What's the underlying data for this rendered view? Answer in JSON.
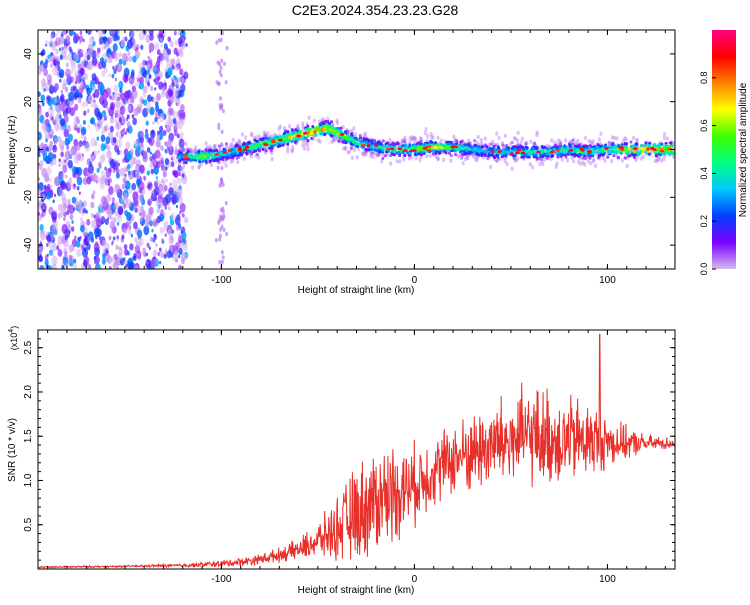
{
  "title": "C2E3.2024.354.23.23.G28",
  "chart_data": [
    {
      "type": "heatmap",
      "xlabel": "Height of straight line (km)",
      "ylabel": "Frequency (Hz)",
      "xlim": [
        -195,
        135
      ],
      "ylim": [
        -50,
        50
      ],
      "x_ticks": [
        -100,
        0,
        100
      ],
      "y_ticks": [
        -40,
        -20,
        0,
        20,
        40
      ],
      "colorbar": {
        "label": "Normalized spectral amplitude",
        "range": [
          0.0,
          1.0
        ],
        "ticks": [
          0.0,
          0.2,
          0.4,
          0.6,
          0.8
        ],
        "colormap": [
          "#d8b8f0",
          "#7a00ff",
          "#0040ff",
          "#00c8ff",
          "#00ff80",
          "#40ff00",
          "#ffff00",
          "#ff8000",
          "#ff0000",
          "#ff0080"
        ]
      },
      "noise_region_x": [
        -195,
        -122
      ],
      "ridge": {
        "x": [
          -122,
          -110,
          -100,
          -90,
          -80,
          -70,
          -60,
          -50,
          -45,
          -40,
          -35,
          -30,
          -20,
          -10,
          0,
          10,
          20,
          30,
          40,
          50,
          60,
          70,
          80,
          90,
          100,
          110,
          120,
          135
        ],
        "freq": [
          -3,
          -3,
          -2,
          0,
          2,
          4,
          6,
          8,
          9,
          7,
          5,
          3,
          1,
          0,
          0,
          1,
          1,
          0,
          -1,
          -1,
          -1,
          -1,
          0,
          -1,
          0,
          0,
          0,
          0
        ],
        "amplitude": [
          0.35,
          0.7,
          0.45,
          0.5,
          0.6,
          0.65,
          0.8,
          0.85,
          0.8,
          0.75,
          0.6,
          0.5,
          0.45,
          0.55,
          0.6,
          0.7,
          0.55,
          0.45,
          0.4,
          0.45,
          0.5,
          0.45,
          0.5,
          0.5,
          0.55,
          0.7,
          0.85,
          0.8
        ]
      }
    },
    {
      "type": "line",
      "xlabel": "Height of straight line (km)",
      "ylabel": "SNR (10 * v/v)",
      "y_multiplier": "(x10",
      "y_multiplier_exp": "4",
      "y_multiplier_close": ")",
      "xlim": [
        -195,
        135
      ],
      "ylim": [
        0,
        2.7
      ],
      "x_ticks": [
        -100,
        0,
        100
      ],
      "y_ticks": [
        0.5,
        1.0,
        1.5,
        2.0,
        2.5
      ],
      "series": [
        {
          "color": "#e8302a",
          "x": [
            -195,
            -150,
            -120,
            -100,
            -90,
            -80,
            -70,
            -60,
            -50,
            -40,
            -30,
            -20,
            -10,
            0,
            10,
            20,
            30,
            40,
            50,
            60,
            70,
            80,
            90,
            100,
            110,
            120,
            135
          ],
          "mean": [
            0.02,
            0.03,
            0.04,
            0.06,
            0.08,
            0.11,
            0.16,
            0.22,
            0.32,
            0.45,
            0.62,
            0.78,
            0.88,
            0.95,
            1.12,
            1.24,
            1.32,
            1.4,
            1.45,
            1.5,
            1.48,
            1.45,
            1.46,
            1.44,
            1.42,
            1.42,
            1.42
          ],
          "spread": [
            0.01,
            0.01,
            0.02,
            0.04,
            0.05,
            0.06,
            0.08,
            0.12,
            0.2,
            0.35,
            0.55,
            0.6,
            0.55,
            0.45,
            0.4,
            0.4,
            0.45,
            0.5,
            0.55,
            0.55,
            0.55,
            0.5,
            0.45,
            0.3,
            0.18,
            0.1,
            0.06
          ],
          "peak": {
            "x": 96,
            "value": 2.65
          }
        }
      ]
    }
  ]
}
